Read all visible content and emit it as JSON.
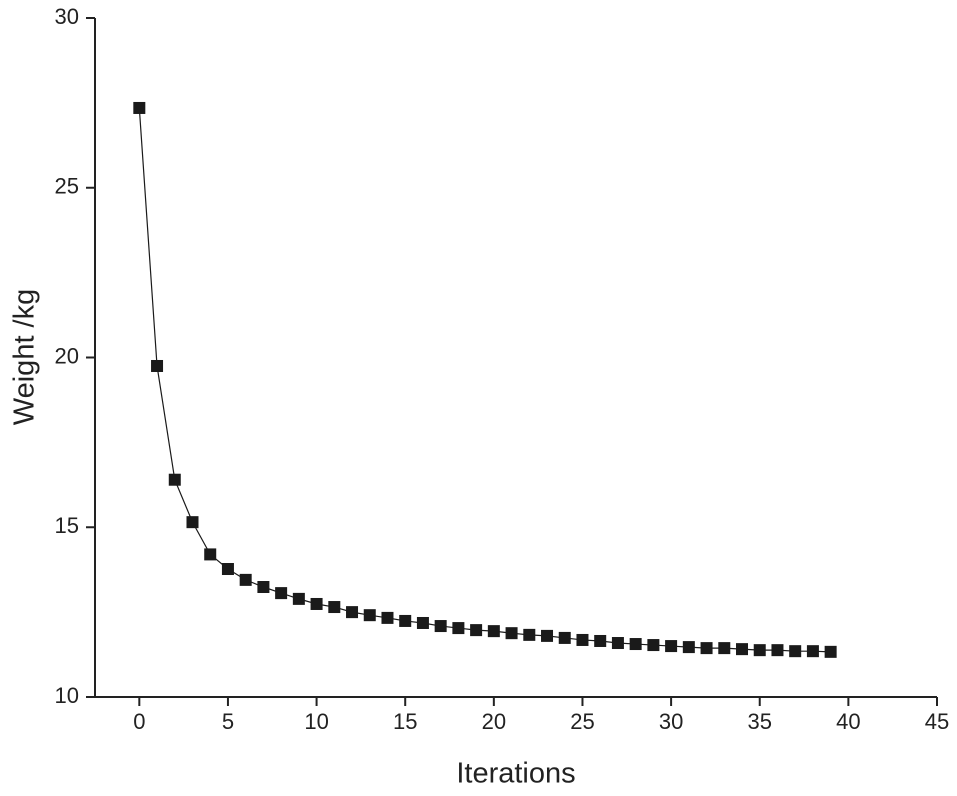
{
  "chart_data": {
    "type": "line",
    "x_label": "Iterations",
    "y_label": "Weight /kg",
    "x": [
      0,
      1,
      2,
      3,
      4,
      5,
      6,
      7,
      8,
      9,
      10,
      11,
      12,
      13,
      14,
      15,
      16,
      17,
      18,
      19,
      20,
      21,
      22,
      23,
      24,
      25,
      26,
      27,
      28,
      29,
      30,
      31,
      32,
      33,
      34,
      35,
      36,
      37,
      38,
      39
    ],
    "series": [
      {
        "color": "#1a1a1a",
        "marker": "square",
        "values": [
          27.35,
          19.75,
          16.4,
          15.15,
          14.2,
          13.77,
          13.45,
          13.24,
          13.06,
          12.89,
          12.74,
          12.65,
          12.5,
          12.41,
          12.33,
          12.24,
          12.18,
          12.09,
          12.03,
          11.97,
          11.94,
          11.88,
          11.83,
          11.8,
          11.74,
          11.68,
          11.65,
          11.59,
          11.56,
          11.53,
          11.5,
          11.47,
          11.44,
          11.44,
          11.41,
          11.38,
          11.38,
          11.35,
          11.35,
          11.33
        ]
      }
    ],
    "xlim": [
      -2.5,
      45
    ],
    "ylim": [
      10,
      30
    ],
    "xticks": [
      0,
      5,
      10,
      15,
      20,
      25,
      30,
      35,
      40,
      45
    ],
    "yticks": [
      10,
      15,
      20,
      25,
      30
    ],
    "grid": false
  }
}
